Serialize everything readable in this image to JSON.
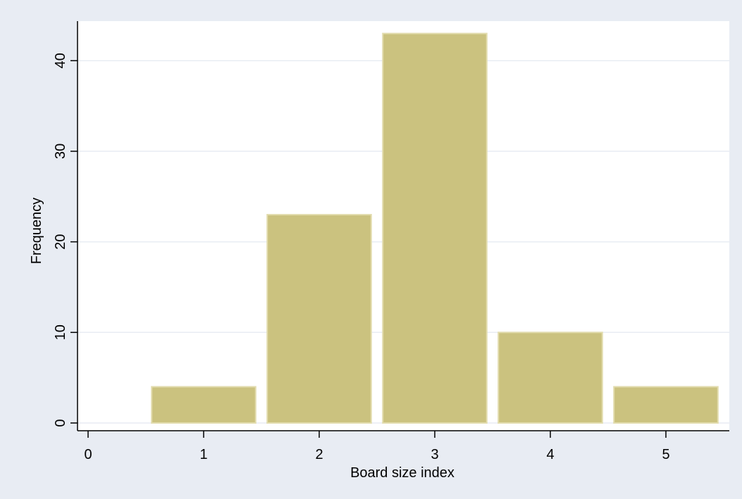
{
  "chart_data": {
    "type": "bar",
    "title": "",
    "xlabel": "Board size index",
    "ylabel": "Frequency",
    "x": [
      1,
      2,
      3,
      4,
      5
    ],
    "values": [
      4,
      23,
      43,
      10,
      4
    ],
    "bar_width": 0.9,
    "xlim": [
      0,
      5.45
    ],
    "ylim": [
      0,
      44
    ],
    "x_ticks": [
      0,
      1,
      2,
      3,
      4,
      5
    ],
    "y_ticks": [
      0,
      10,
      20,
      30,
      40
    ],
    "x_tick_labels": [
      "0",
      "1",
      "2",
      "3",
      "4",
      "5"
    ],
    "y_tick_labels": [
      "0",
      "10",
      "20",
      "30",
      "40"
    ],
    "grid": {
      "horizontal": true,
      "vertical": false
    },
    "legend": "none",
    "colors": {
      "page_background": "#e8ecf3",
      "plot_background": "#ffffff",
      "bar_fill": "#cbc27f",
      "bar_edge": "#e2dcae",
      "grid": "#e8ecf3",
      "axis": "#000000"
    }
  }
}
